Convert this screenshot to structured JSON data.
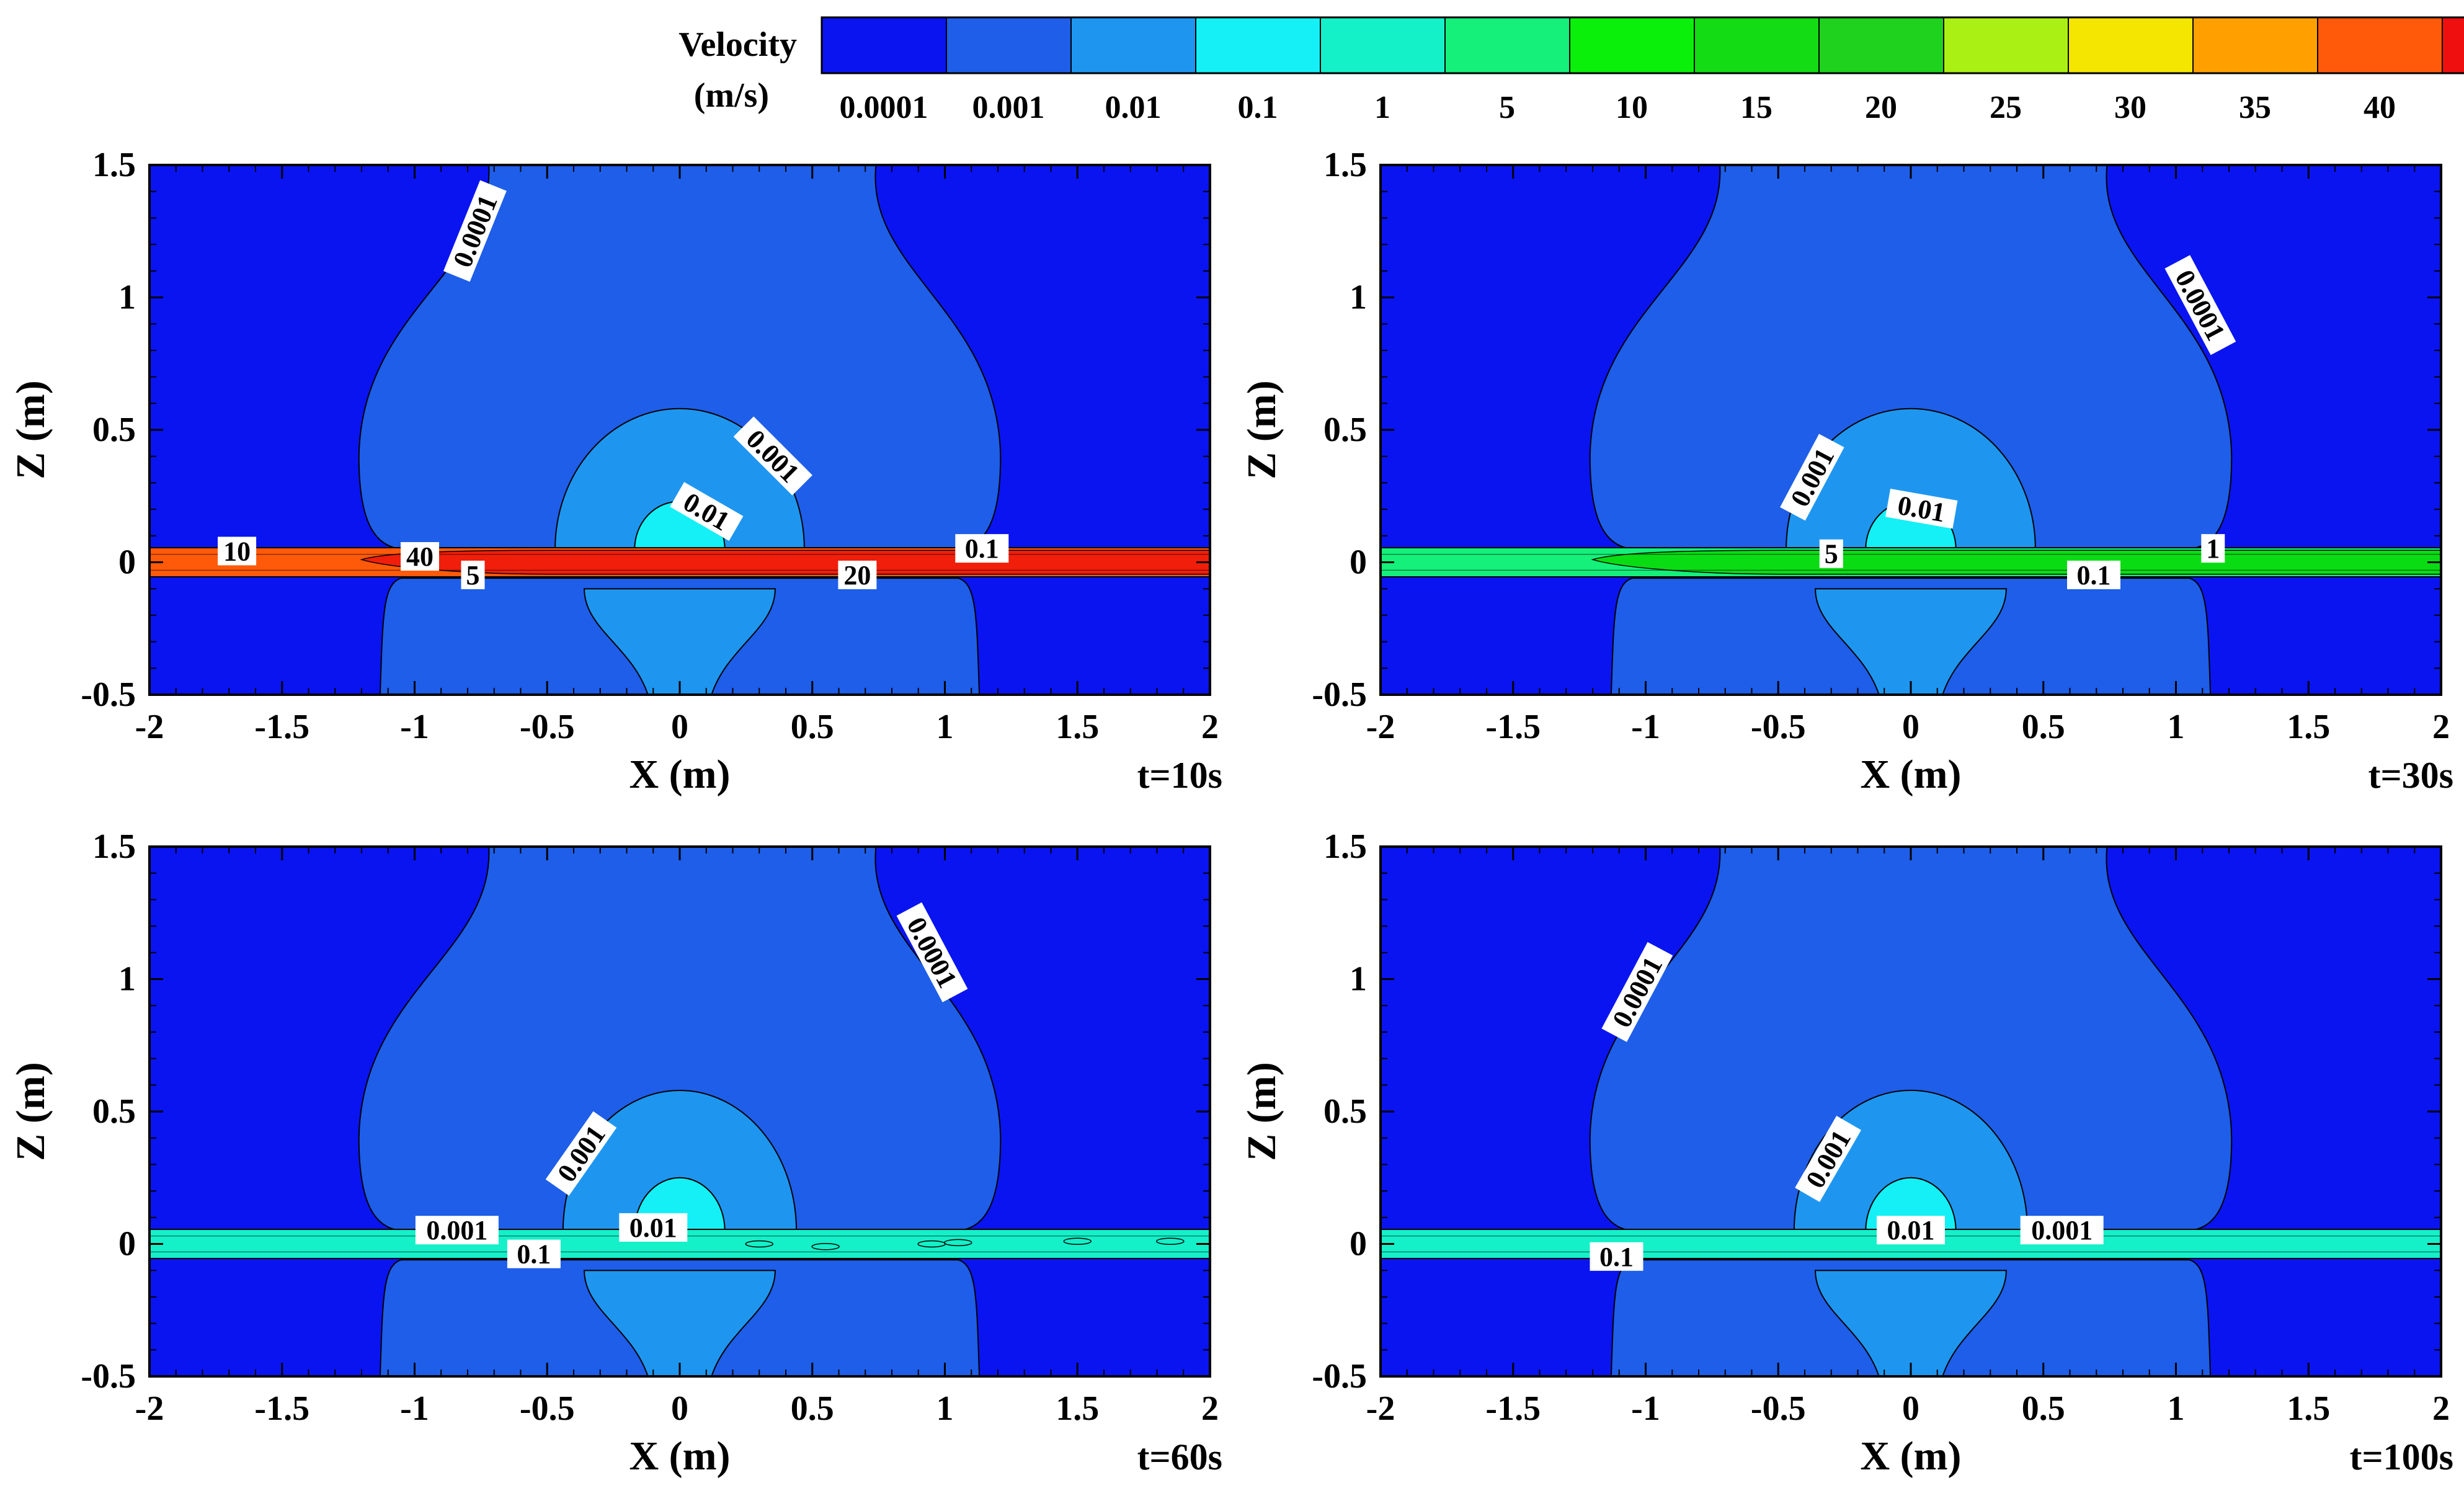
{
  "legend": {
    "title_line1": "Velocity",
    "title_line2": "(m/s)",
    "levels": [
      "0.0001",
      "0.001",
      "0.01",
      "0.1",
      "1",
      "5",
      "10",
      "15",
      "20",
      "25",
      "30",
      "35",
      "40"
    ],
    "colors": [
      "#0a14f0",
      "#1e5ee8",
      "#1e96f0",
      "#14f0f5",
      "#14f0c8",
      "#14f07a",
      "#0af00a",
      "#14dc14",
      "#1ed21e",
      "#aaf014",
      "#f5e600",
      "#ffa000",
      "#ff5a0a",
      "#f00f0f"
    ]
  },
  "colors": {
    "background_dark": "#0a14f0",
    "lobe": "#1e5ee8",
    "core": "#1e96f0",
    "inner": "#14f0f5",
    "band_red": "#f01e0a",
    "band_orange": "#ff5a0a",
    "band_green": "#14f07a",
    "band_green_dark": "#0adc14",
    "band_cyan": "#14f0c8"
  },
  "chart_data": [
    {
      "type": "heatmap",
      "subtype": "contour",
      "time_label": "t=10s",
      "xlabel": "X (m)",
      "ylabel": "Z (m)",
      "xlim": [
        -2,
        2
      ],
      "ylim": [
        -0.5,
        1.5
      ],
      "xticks": [
        "-2",
        "-1.5",
        "-1",
        "-0.5",
        "0",
        "0.5",
        "1",
        "1.5",
        "2"
      ],
      "yticks": [
        "1.5",
        "1",
        "0.5",
        "0",
        "-0.5"
      ],
      "band": "red",
      "contour_labels": [
        {
          "text": "0.0001",
          "x": -0.77,
          "z": 1.25,
          "angle": -68
        },
        {
          "text": "0.001",
          "x": 0.35,
          "z": 0.4,
          "angle": 45
        },
        {
          "text": "0.01",
          "x": 0.1,
          "z": 0.19,
          "angle": 30
        },
        {
          "text": "10",
          "x": -1.67,
          "z": 0.04,
          "angle": 0
        },
        {
          "text": "40",
          "x": -0.98,
          "z": 0.02,
          "angle": 0
        },
        {
          "text": "5",
          "x": -0.78,
          "z": -0.05,
          "angle": 0
        },
        {
          "text": "20",
          "x": 0.67,
          "z": -0.05,
          "angle": 0
        },
        {
          "text": "0.1",
          "x": 1.14,
          "z": 0.05,
          "angle": 0
        }
      ]
    },
    {
      "type": "heatmap",
      "subtype": "contour",
      "time_label": "t=30s",
      "xlabel": "X (m)",
      "ylabel": "Z (m)",
      "xlim": [
        -2,
        2
      ],
      "ylim": [
        -0.5,
        1.5
      ],
      "xticks": [
        "-2",
        "-1.5",
        "-1",
        "-0.5",
        "0",
        "0.5",
        "1",
        "1.5",
        "2"
      ],
      "yticks": [
        "1.5",
        "1",
        "0.5",
        "0",
        "-0.5"
      ],
      "band": "green",
      "contour_labels": [
        {
          "text": "0.0001",
          "x": 1.09,
          "z": 0.97,
          "angle": 62
        },
        {
          "text": "0.001",
          "x": -0.37,
          "z": 0.32,
          "angle": -62
        },
        {
          "text": "0.01",
          "x": 0.04,
          "z": 0.2,
          "angle": 10
        },
        {
          "text": "5",
          "x": -0.3,
          "z": 0.03,
          "angle": 0
        },
        {
          "text": "1",
          "x": 1.14,
          "z": 0.05,
          "angle": 0
        },
        {
          "text": "0.1",
          "x": 0.69,
          "z": -0.05,
          "angle": 0
        }
      ]
    },
    {
      "type": "heatmap",
      "subtype": "contour",
      "time_label": "t=60s",
      "xlabel": "X (m)",
      "ylabel": "Z (m)",
      "xlim": [
        -2,
        2
      ],
      "ylim": [
        -0.5,
        1.5
      ],
      "xticks": [
        "-2",
        "-1.5",
        "-1",
        "-0.5",
        "0",
        "0.5",
        "1",
        "1.5",
        "2"
      ],
      "yticks": [
        "1.5",
        "1",
        "0.5",
        "0",
        "-0.5"
      ],
      "band": "cyan",
      "contour_labels": [
        {
          "text": "0.0001",
          "x": 0.95,
          "z": 1.1,
          "angle": 62
        },
        {
          "text": "0.001",
          "x": -0.37,
          "z": 0.34,
          "angle": -55
        },
        {
          "text": "0.01",
          "x": -0.1,
          "z": 0.06,
          "angle": 0
        },
        {
          "text": "0.001",
          "x": -0.84,
          "z": 0.05,
          "angle": 0
        },
        {
          "text": "0.1",
          "x": -0.55,
          "z": -0.04,
          "angle": 0
        }
      ]
    },
    {
      "type": "heatmap",
      "subtype": "contour",
      "time_label": "t=100s",
      "xlabel": "X (m)",
      "ylabel": "Z (m)",
      "xlim": [
        -2,
        2
      ],
      "ylim": [
        -0.5,
        1.5
      ],
      "xticks": [
        "-2",
        "-1.5",
        "-1",
        "-0.5",
        "0",
        "0.5",
        "1",
        "1.5",
        "2"
      ],
      "yticks": [
        "1.5",
        "1",
        "0.5",
        "0",
        "-0.5"
      ],
      "band": "cyan",
      "contour_labels": [
        {
          "text": "0.0001",
          "x": -1.03,
          "z": 0.95,
          "angle": -62
        },
        {
          "text": "0.001",
          "x": -0.31,
          "z": 0.32,
          "angle": -60
        },
        {
          "text": "0.01",
          "x": 0.0,
          "z": 0.05,
          "angle": 0
        },
        {
          "text": "0.001",
          "x": 0.57,
          "z": 0.05,
          "angle": 0
        },
        {
          "text": "0.1",
          "x": -1.11,
          "z": -0.05,
          "angle": 0
        }
      ]
    }
  ]
}
